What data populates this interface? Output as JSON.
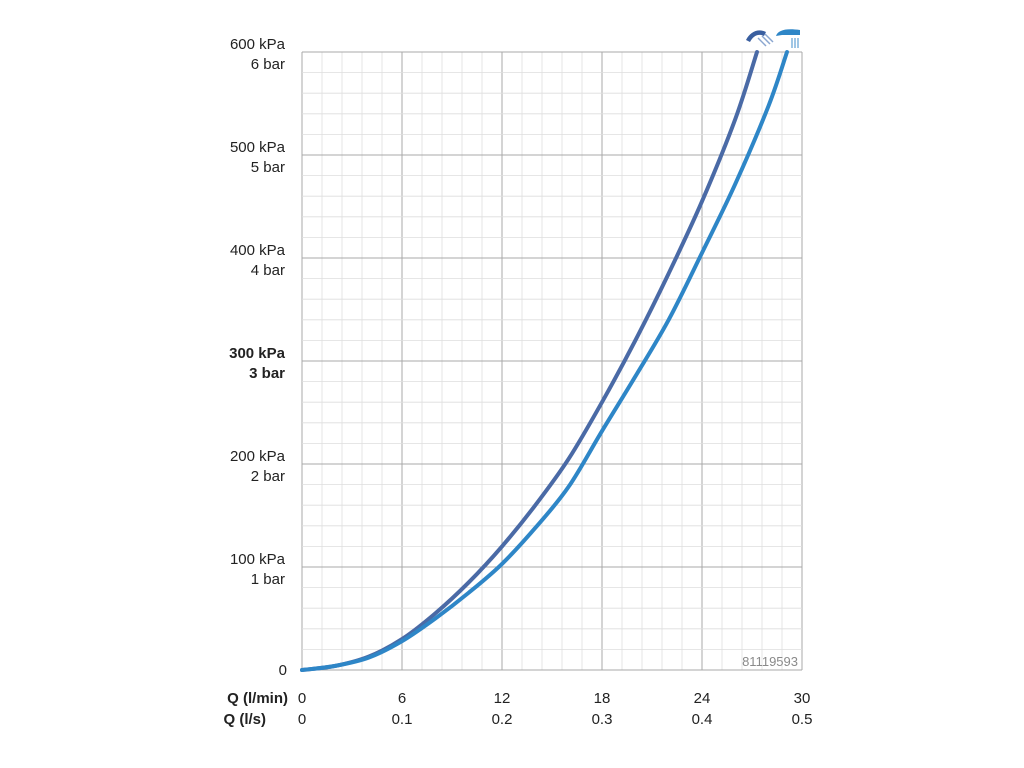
{
  "chart_data": {
    "type": "line",
    "title": "",
    "x_label_primary": "Q (l/min)",
    "x_label_secondary": "Q (l/s)",
    "x_ticks_primary": [
      "0",
      "6",
      "12",
      "18",
      "24",
      "30"
    ],
    "x_ticks_secondary": [
      "0",
      "0.1",
      "0.2",
      "0.3",
      "0.4",
      "0.5"
    ],
    "xlim": [
      0,
      30
    ],
    "ylim": [
      0,
      600
    ],
    "y_ticks": [
      {
        "value": 0,
        "kpa": "0",
        "bar": ""
      },
      {
        "value": 100,
        "kpa": "100 kPa",
        "bar": "1 bar"
      },
      {
        "value": 200,
        "kpa": "200 kPa",
        "bar": "2 bar"
      },
      {
        "value": 300,
        "kpa": "300 kPa",
        "bar": "3 bar",
        "bold": true
      },
      {
        "value": 400,
        "kpa": "400 kPa",
        "bar": "4 bar"
      },
      {
        "value": 500,
        "kpa": "500 kPa",
        "bar": "5 bar"
      },
      {
        "value": 600,
        "kpa": "600 kPa",
        "bar": "6 bar"
      }
    ],
    "grid": true,
    "series": [
      {
        "icon": "hand-shower-jet-icon",
        "color": "#4a6aa6",
        "x": [
          0,
          2,
          4,
          6,
          8,
          10,
          12,
          14,
          16,
          18,
          20,
          22,
          24,
          26,
          27.3
        ],
        "y": [
          0,
          4,
          13,
          30,
          55,
          85,
          120,
          160,
          205,
          260,
          320,
          385,
          455,
          535,
          600
        ]
      },
      {
        "icon": "overhead-shower-icon",
        "color": "#2e86c7",
        "x": [
          0,
          2,
          4,
          6,
          8,
          10,
          12,
          14,
          16,
          18,
          20,
          22,
          24,
          26,
          28,
          29.1
        ],
        "y": [
          0,
          4,
          12,
          28,
          50,
          75,
          103,
          138,
          178,
          232,
          285,
          340,
          405,
          472,
          548,
          600
        ]
      }
    ],
    "code_label": "81119593"
  }
}
